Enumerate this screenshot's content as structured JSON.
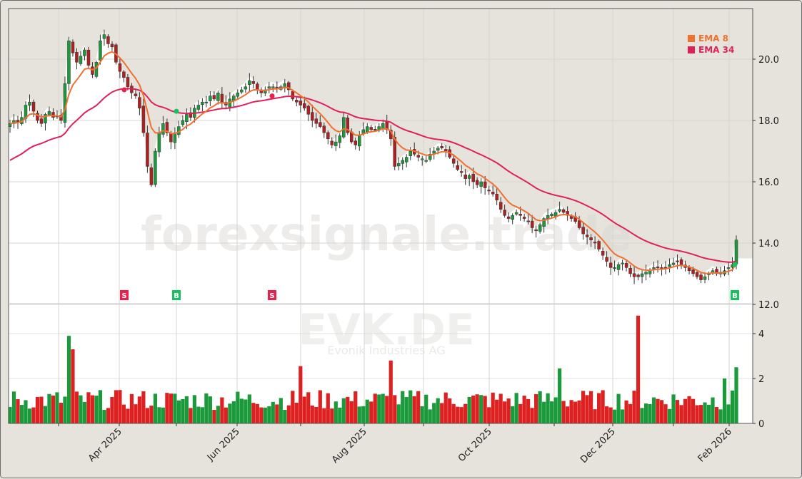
{
  "chart_data": {
    "type": "candlestick",
    "title": "EVK.DE",
    "subtitle": "Evonik Industries AG",
    "watermark": "forexsignale.trade",
    "xlabel": "",
    "ylabel": "",
    "price_axis": {
      "ticks": [
        "12.0",
        "14.0",
        "16.0",
        "18.0",
        "20.0"
      ],
      "ylim": [
        12.0,
        21.6
      ]
    },
    "volume_axis": {
      "ticks": [
        "0",
        "2",
        "4"
      ],
      "ylim": [
        0,
        5.0
      ]
    },
    "x_ticks": [
      "Apr 2025",
      "Jun 2025",
      "Aug 2025",
      "Oct 2025",
      "Dec 2025",
      "Feb 2026"
    ],
    "legend": [
      {
        "label": "EMA 8",
        "color": "#f07030"
      },
      {
        "label": "EMA 34",
        "color": "#e0205a"
      }
    ],
    "signals": [
      {
        "label": "S",
        "type": "sell",
        "approx_date": "Mar 2025 (late)",
        "price": 19.0
      },
      {
        "label": "B",
        "type": "buy",
        "approx_date": "May 2025 (early)",
        "price": 18.3
      },
      {
        "label": "S",
        "type": "sell",
        "approx_date": "Jun 2025 (late)",
        "price": 18.8
      },
      {
        "label": "B",
        "type": "buy",
        "approx_date": "Feb 2026 (early)",
        "price": 13.3
      }
    ],
    "grid": true,
    "colors": {
      "up": "#1a9a3a",
      "down": "#dd2020",
      "ema8": "#f07030",
      "ema34": "#e0205a",
      "buy": "#18c060",
      "sell": "#e8204a"
    },
    "close_series_approx": [
      17.9,
      18.0,
      17.95,
      18.1,
      18.5,
      18.6,
      18.3,
      18.0,
      17.9,
      18.2,
      18.3,
      18.1,
      18.15,
      18.0,
      19.2,
      20.6,
      20.2,
      19.9,
      20.1,
      20.3,
      19.8,
      19.5,
      19.9,
      20.6,
      20.8,
      20.5,
      20.4,
      19.9,
      19.6,
      19.4,
      19.1,
      18.9,
      18.8,
      18.4,
      17.6,
      16.5,
      15.9,
      17.0,
      17.6,
      17.9,
      17.6,
      17.3,
      17.6,
      17.8,
      18.0,
      18.2,
      18.1,
      18.4,
      18.5,
      18.6,
      18.6,
      18.8,
      18.7,
      18.9,
      18.6,
      18.5,
      18.7,
      18.8,
      18.9,
      19.0,
      19.1,
      19.3,
      19.2,
      19.0,
      18.9,
      19.0,
      19.1,
      19.1,
      19.05,
      19.1,
      19.2,
      19.0,
      18.7,
      18.6,
      18.5,
      18.4,
      18.2,
      18.0,
      17.9,
      17.8,
      17.6,
      17.4,
      17.2,
      17.3,
      17.5,
      18.1,
      17.6,
      17.3,
      17.2,
      17.5,
      17.7,
      17.8,
      17.7,
      17.7,
      17.8,
      17.9,
      17.7,
      17.4,
      16.5,
      16.6,
      16.7,
      16.8,
      17.0,
      16.9,
      16.8,
      16.75,
      16.7,
      16.9,
      17.0,
      17.1,
      17.1,
      17.0,
      16.8,
      16.6,
      16.4,
      16.3,
      16.1,
      16.2,
      16.0,
      15.9,
      16.0,
      15.8,
      15.7,
      15.6,
      15.4,
      15.1,
      14.9,
      14.8,
      14.9,
      15.0,
      14.9,
      14.8,
      14.7,
      14.5,
      14.4,
      14.6,
      14.8,
      14.9,
      14.95,
      15.0,
      15.1,
      15.0,
      14.9,
      14.8,
      14.7,
      14.5,
      14.3,
      14.2,
      14.1,
      14.0,
      13.8,
      13.6,
      13.4,
      13.2,
      13.2,
      13.3,
      13.35,
      13.2,
      13.0,
      12.9,
      12.9,
      13.0,
      13.05,
      13.1,
      13.2,
      13.2,
      13.15,
      13.2,
      13.3,
      13.35,
      13.4,
      13.3,
      13.2,
      13.1,
      13.0,
      12.9,
      12.8,
      12.9,
      13.0,
      13.1,
      13.0,
      13.05,
      13.1,
      13.2,
      13.3,
      14.1
    ]
  }
}
